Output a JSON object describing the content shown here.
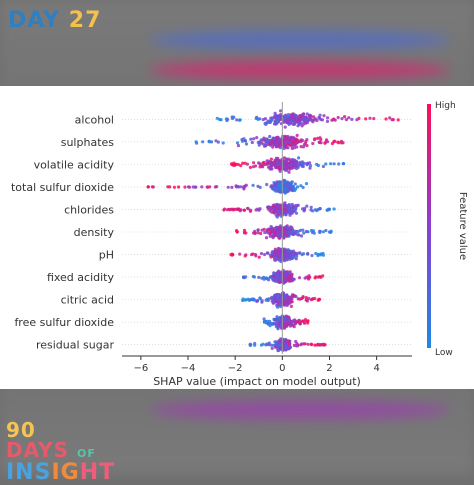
{
  "header": {
    "day_word": "DAY",
    "day_number": "27"
  },
  "logo": {
    "line1_a": "90",
    "line1_b": "DAYS",
    "line1_c": "OF",
    "line2_a": "INS",
    "line2_b": "IG",
    "line2_c": "HT"
  },
  "colors": {
    "low": "#1e88e5",
    "high": "#ff0d57",
    "axis": "#333333",
    "zero_line": "#999999"
  },
  "chart_data": {
    "type": "scatter",
    "subtype": "shap-beeswarm-summary",
    "features": [
      {
        "name": "alcohol",
        "min": -3.0,
        "max": 5.0,
        "core": [
          -1.0,
          1.8
        ]
      },
      {
        "name": "sulphates",
        "min": -3.8,
        "max": 2.8,
        "core": [
          -1.2,
          1.2
        ]
      },
      {
        "name": "volatile acidity",
        "min": -2.2,
        "max": 2.7,
        "core": [
          -0.8,
          1.0
        ]
      },
      {
        "name": "total sulfur dioxide",
        "min": -5.8,
        "max": 1.2,
        "core": [
          -0.5,
          0.6
        ]
      },
      {
        "name": "chlorides",
        "min": -2.5,
        "max": 2.3,
        "core": [
          -0.6,
          0.7
        ]
      },
      {
        "name": "density",
        "min": -2.0,
        "max": 2.1,
        "core": [
          -0.6,
          0.6
        ]
      },
      {
        "name": "pH",
        "min": -2.3,
        "max": 1.9,
        "core": [
          -0.5,
          0.6
        ]
      },
      {
        "name": "fixed acidity",
        "min": -1.7,
        "max": 1.8,
        "core": [
          -0.5,
          0.5
        ]
      },
      {
        "name": "citric acid",
        "min": -1.7,
        "max": 1.8,
        "core": [
          -0.5,
          0.5
        ]
      },
      {
        "name": "free sulfur dioxide",
        "min": -0.8,
        "max": 1.1,
        "core": [
          -0.3,
          0.4
        ]
      },
      {
        "name": "residual sugar",
        "min": -1.5,
        "max": 1.9,
        "core": [
          -0.3,
          0.4
        ]
      }
    ],
    "xlim": [
      -6.8,
      5.5
    ],
    "xticks": [
      -6,
      -4,
      -2,
      0,
      2,
      4
    ],
    "xlabel": "SHAP value (impact on model output)",
    "colorbar": {
      "label": "Feature value",
      "high": "High",
      "low": "Low"
    },
    "grid": false,
    "legend": "right colorbar"
  }
}
